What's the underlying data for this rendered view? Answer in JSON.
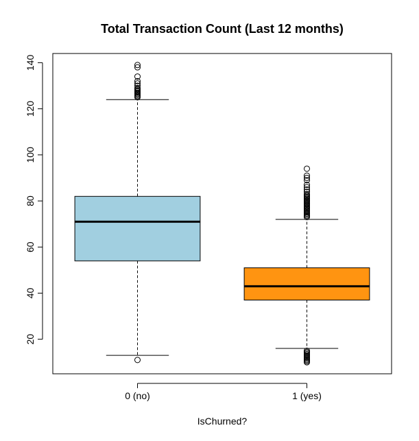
{
  "chart_data": {
    "type": "boxplot",
    "title": "Total Transaction Count (Last 12 months)",
    "xlabel": "IsChurned?",
    "ylabel": "",
    "ylim": [
      5,
      144
    ],
    "yticks": [
      20,
      40,
      60,
      80,
      100,
      120,
      140
    ],
    "grid": false,
    "categories": [
      "0 (no)",
      "1 (yes)"
    ],
    "boxes": [
      {
        "label": "0 (no)",
        "color": "#a1cfe0",
        "whisker_low": 13,
        "q1": 54,
        "median": 71,
        "q3": 82,
        "whisker_high": 124,
        "outliers": [
          11,
          125,
          125.5,
          126,
          126.5,
          127,
          127.5,
          128,
          128.5,
          129,
          130,
          131,
          132,
          134,
          138,
          139
        ]
      },
      {
        "label": "1 (yes)",
        "color": "#ff9411",
        "whisker_low": 16,
        "q1": 37,
        "median": 43,
        "q3": 51,
        "whisker_high": 72,
        "outliers": [
          10,
          10.5,
          11,
          11.5,
          12,
          12.5,
          13,
          13.5,
          14,
          14.5,
          15,
          73,
          73.5,
          74,
          74.5,
          75,
          75.5,
          76,
          76.5,
          77,
          77.5,
          78,
          78.5,
          79,
          79.5,
          80,
          80.5,
          81,
          81.5,
          82,
          82.5,
          83,
          84,
          85,
          86,
          87,
          89,
          90,
          91,
          94
        ]
      }
    ]
  }
}
